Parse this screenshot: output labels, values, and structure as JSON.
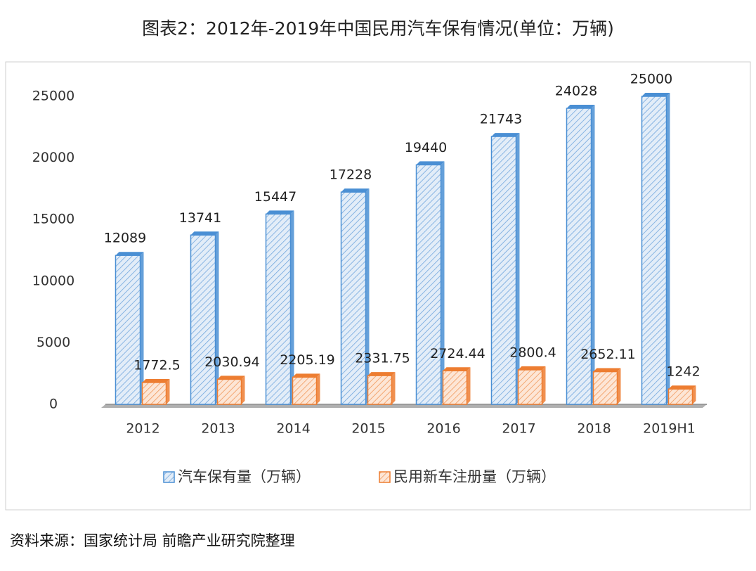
{
  "chart_data": {
    "type": "bar",
    "title": "图表2：2012年-2019年中国民用汽车保有情况(单位：万辆)",
    "source": "资料来源：国家统计局 前瞻产业研究院整理",
    "categories": [
      "2012",
      "2013",
      "2014",
      "2015",
      "2016",
      "2017",
      "2018",
      "2019H1"
    ],
    "series": [
      {
        "name": "汽车保有量（万辆）",
        "color": "#4a8fd4",
        "values": [
          12089,
          13741,
          15447,
          17228,
          19440,
          21743,
          24028,
          25000
        ]
      },
      {
        "name": "民用新车注册量（万辆）",
        "color": "#ed7d31",
        "values": [
          1772.5,
          2030.94,
          2205.19,
          2331.75,
          2724.44,
          2800.4,
          2652.11,
          1242
        ]
      }
    ],
    "ylim": [
      0,
      25000
    ],
    "yticks": [
      0,
      5000,
      10000,
      15000,
      20000,
      25000
    ],
    "grid": false,
    "legend": "bottom"
  }
}
